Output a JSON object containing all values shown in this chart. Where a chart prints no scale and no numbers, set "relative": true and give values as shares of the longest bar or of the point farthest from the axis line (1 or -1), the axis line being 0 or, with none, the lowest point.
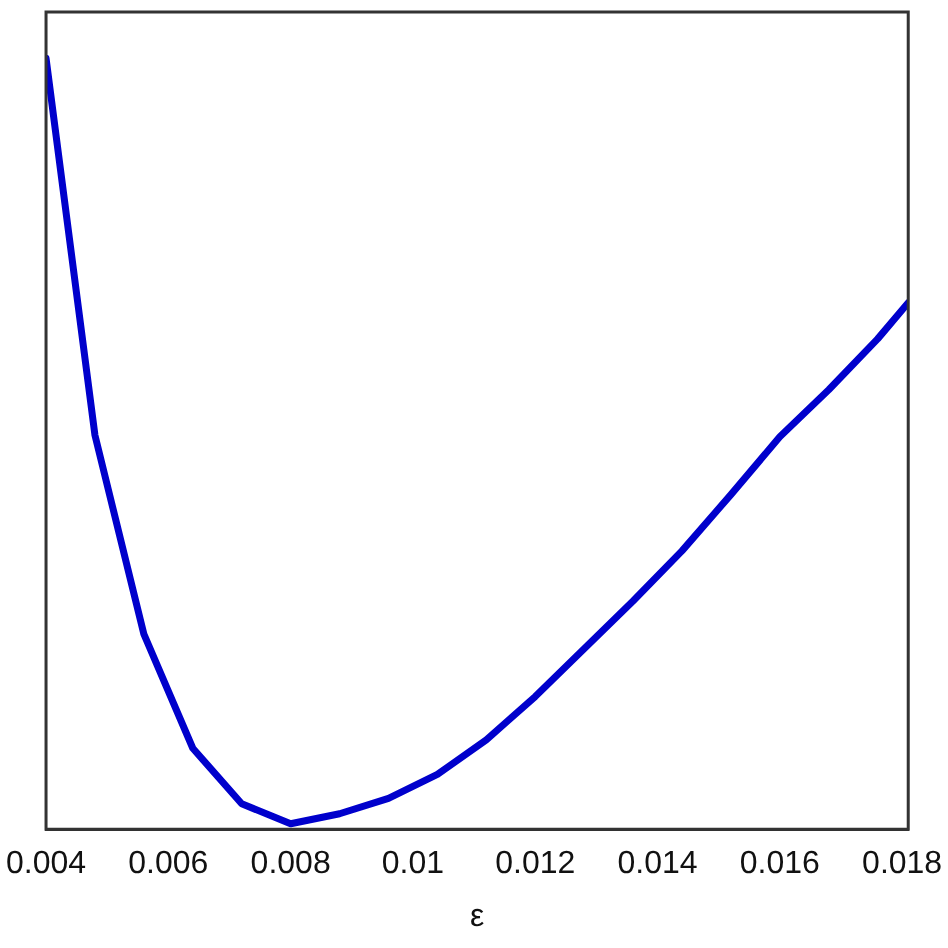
{
  "chart_data": {
    "type": "line",
    "xlabel": "ε",
    "relative": true,
    "xlim": [
      0.004,
      0.0181
    ],
    "xticks": [
      0.004,
      0.006,
      0.008,
      0.01,
      0.012,
      0.014,
      0.016,
      0.018
    ],
    "series": [
      {
        "color": "#0000cc",
        "x": [
          0.004,
          0.0048,
          0.0056,
          0.0064,
          0.0072,
          0.008,
          0.0088,
          0.0096,
          0.0104,
          0.0112,
          0.012,
          0.0128,
          0.0136,
          0.0144,
          0.0152,
          0.016,
          0.0168,
          0.0176,
          0.0181
        ],
        "values": [
          1,
          0.511,
          0.253,
          0.105,
          0.033,
          0.007,
          0.02,
          0.04,
          0.071,
          0.116,
          0.172,
          0.234,
          0.296,
          0.361,
          0.434,
          0.509,
          0.57,
          0.636,
          0.683
        ]
      }
    ],
    "grid": false,
    "legend": false,
    "marker": "none",
    "line_style": "solid"
  }
}
